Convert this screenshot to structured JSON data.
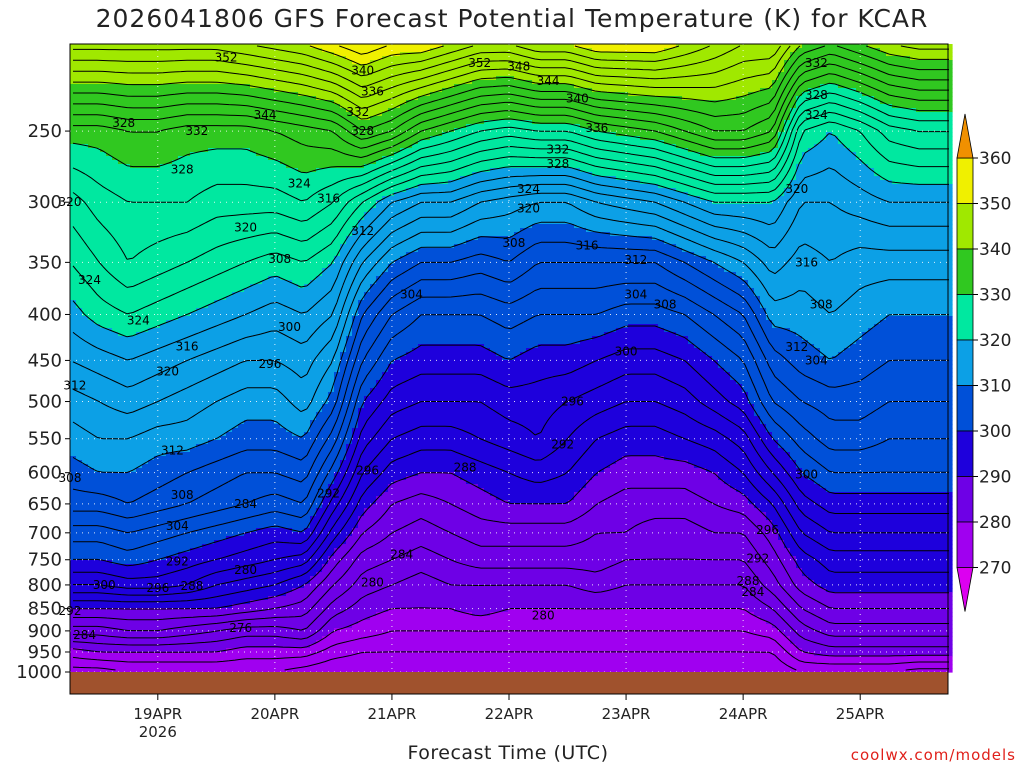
{
  "title": "2026041806 GFS Forecast Potential Temperature (K) for KCAR",
  "xlabel": "Forecast Time (UTC)",
  "credit": "coolwx.com/models",
  "chart_data": {
    "type": "heatmap",
    "title": "2026041806 GFS Forecast Potential Temperature (K) for KCAR",
    "xlabel": "Forecast Time (UTC)",
    "ylabel": "",
    "y_ticks": [
      250,
      300,
      350,
      400,
      450,
      500,
      550,
      600,
      650,
      700,
      750,
      800,
      850,
      900,
      950,
      1000
    ],
    "y_tick_labels": [
      "250",
      "300",
      "350",
      "400",
      "450",
      "500",
      "550",
      "600",
      "650",
      "700",
      "750",
      "800",
      "850",
      "900",
      "950",
      "1000"
    ],
    "ylim": [
      1000,
      200
    ],
    "y_scale": "log",
    "x_ticks": [
      "19APR",
      "20APR",
      "21APR",
      "22APR",
      "23APR",
      "24APR",
      "25APR"
    ],
    "x_tick_labels": [
      "19APR",
      "20APR",
      "21APR",
      "22APR",
      "23APR",
      "24APR",
      "25APR"
    ],
    "x_sublabel": "2026",
    "x_hours": [
      0,
      6,
      12,
      18,
      24,
      30,
      36,
      42,
      48,
      54,
      60,
      66,
      72,
      78,
      84,
      90,
      96,
      102,
      108,
      114,
      120,
      126,
      132,
      138,
      144,
      150,
      156,
      162,
      168,
      174,
      180
    ],
    "colorbar": {
      "levels": [
        270,
        280,
        290,
        300,
        310,
        320,
        330,
        340,
        350,
        360
      ],
      "labels": [
        "270",
        "280",
        "290",
        "300",
        "310",
        "320",
        "330",
        "340",
        "350",
        "360"
      ],
      "colors": [
        "#dc00f0",
        "#a000f0",
        "#6e00e6",
        "#1e00dc",
        "#0050d8",
        "#0ca0e6",
        "#00e8a0",
        "#30c820",
        "#a0e800",
        "#f0f000",
        "#f09000"
      ],
      "extend": "both"
    },
    "pressure_levels": [
      1000,
      950,
      900,
      850,
      800,
      750,
      700,
      650,
      600,
      550,
      500,
      450,
      400,
      350,
      300,
      250,
      200
    ],
    "theta_profiles": [
      [
        275,
        279,
        285,
        290,
        296,
        300,
        303,
        307,
        309,
        311,
        313,
        316,
        319,
        322,
        325,
        331,
        347
      ],
      [
        275,
        280,
        285,
        290,
        296,
        300,
        303,
        307,
        310,
        312,
        314,
        317,
        321,
        324,
        327,
        331,
        347
      ],
      [
        276,
        280,
        286,
        290,
        297,
        301,
        304,
        308,
        310,
        312,
        315,
        318,
        322,
        326,
        328,
        332,
        347
      ],
      [
        276,
        280,
        286,
        290,
        297,
        300,
        303,
        307,
        309,
        311,
        314,
        317,
        321,
        325,
        328,
        332,
        347
      ],
      [
        276,
        280,
        285,
        290,
        296,
        299,
        302,
        306,
        308,
        311,
        313,
        316,
        320,
        324,
        328,
        331,
        347
      ],
      [
        276,
        280,
        284,
        290,
        294,
        298,
        301,
        305,
        307,
        310,
        312,
        315,
        319,
        323,
        327,
        331,
        347
      ],
      [
        276,
        279,
        283,
        289,
        293,
        297,
        300,
        304,
        306,
        309,
        311,
        314,
        318,
        322,
        327,
        331,
        348
      ],
      [
        276,
        279,
        283,
        288,
        292,
        296,
        299,
        303,
        306,
        309,
        311,
        314,
        317,
        321,
        327,
        332,
        349
      ],
      [
        275,
        279,
        284,
        287,
        290,
        295,
        300,
        304,
        307,
        310,
        313,
        315,
        318,
        322,
        328,
        333,
        350
      ],
      [
        274,
        277,
        280,
        283,
        286,
        289,
        293,
        297,
        301,
        305,
        309,
        312,
        316,
        320,
        326,
        334,
        352
      ],
      [
        274,
        276,
        279,
        281,
        283,
        285,
        288,
        291,
        294,
        297,
        300,
        304,
        308,
        314,
        322,
        338,
        354
      ],
      [
        274,
        276,
        278,
        280,
        282,
        284,
        286,
        288,
        291,
        294,
        297,
        300,
        304,
        310,
        318,
        336,
        352
      ],
      [
        274,
        276,
        278,
        280,
        281,
        283,
        285,
        287,
        290,
        293,
        296,
        299,
        302,
        308,
        316,
        332,
        352
      ],
      [
        274,
        276,
        278,
        280,
        282,
        284,
        286,
        288,
        290,
        293,
        296,
        299,
        302,
        308,
        316,
        330,
        350
      ],
      [
        274,
        276,
        278,
        281,
        282,
        285,
        287,
        289,
        291,
        294,
        296,
        299,
        302,
        307,
        314,
        328,
        348
      ],
      [
        274,
        276,
        278,
        280,
        282,
        285,
        287,
        290,
        292,
        295,
        297,
        300,
        303,
        308,
        313,
        327,
        348
      ],
      [
        274,
        276,
        278,
        280,
        282,
        285,
        287,
        290,
        293,
        296,
        297,
        299,
        302,
        306,
        312,
        328,
        350
      ],
      [
        274,
        276,
        278,
        280,
        282,
        285,
        287,
        290,
        292,
        294,
        296,
        299,
        302,
        306,
        312,
        328,
        350
      ],
      [
        274,
        276,
        278,
        280,
        283,
        285,
        286,
        288,
        290,
        292,
        295,
        298,
        302,
        306,
        314,
        330,
        352
      ],
      [
        274,
        276,
        278,
        280,
        282,
        284,
        286,
        287,
        289,
        291,
        294,
        297,
        301,
        306,
        315,
        331,
        352
      ],
      [
        274,
        276,
        278,
        280,
        282,
        284,
        285,
        287,
        289,
        291,
        294,
        297,
        301,
        306,
        316,
        332,
        352
      ],
      [
        274,
        276,
        278,
        280,
        282,
        284,
        285,
        287,
        289,
        292,
        295,
        298,
        302,
        308,
        318,
        334,
        350
      ],
      [
        274,
        276,
        278,
        280,
        282,
        284,
        286,
        288,
        290,
        293,
        297,
        300,
        304,
        310,
        320,
        336,
        348
      ],
      [
        274,
        276,
        278,
        280,
        282,
        284,
        286,
        289,
        292,
        295,
        299,
        302,
        306,
        312,
        320,
        336,
        346
      ],
      [
        274,
        276,
        279,
        282,
        285,
        287,
        289,
        292,
        296,
        300,
        304,
        307,
        311,
        315,
        320,
        334,
        346
      ],
      [
        276,
        280,
        283,
        286,
        289,
        291,
        294,
        297,
        300,
        303,
        306,
        309,
        311,
        313,
        316,
        322,
        340
      ],
      [
        276,
        281,
        285,
        288,
        291,
        293,
        296,
        299,
        302,
        305,
        307,
        310,
        312,
        314,
        316,
        320,
        338
      ],
      [
        276,
        281,
        285,
        288,
        291,
        293,
        296,
        299,
        302,
        305,
        307,
        309,
        311,
        313,
        317,
        322,
        340
      ],
      [
        276,
        281,
        285,
        288,
        291,
        293,
        296,
        299,
        302,
        304,
        306,
        308,
        310,
        313,
        318,
        325,
        342
      ],
      [
        275,
        281,
        285,
        288,
        291,
        293,
        296,
        299,
        302,
        304,
        306,
        308,
        310,
        313,
        318,
        326,
        343
      ],
      [
        275,
        281,
        285,
        288,
        291,
        293,
        296,
        299,
        302,
        304,
        306,
        308,
        310,
        313,
        318,
        326,
        343
      ]
    ],
    "contour_interval": 2,
    "contour_labels": [
      {
        "text": "352",
        "hour": 32,
        "p": 207
      },
      {
        "text": "344",
        "hour": 40,
        "p": 240
      },
      {
        "text": "340",
        "hour": 60,
        "p": 214
      },
      {
        "text": "336",
        "hour": 62,
        "p": 226
      },
      {
        "text": "332",
        "hour": 59,
        "p": 238
      },
      {
        "text": "328",
        "hour": 60,
        "p": 250
      },
      {
        "text": "352",
        "hour": 84,
        "p": 210
      },
      {
        "text": "348",
        "hour": 92,
        "p": 212
      },
      {
        "text": "344",
        "hour": 98,
        "p": 220
      },
      {
        "text": "340",
        "hour": 104,
        "p": 230
      },
      {
        "text": "336",
        "hour": 108,
        "p": 248
      },
      {
        "text": "332",
        "hour": 100,
        "p": 262
      },
      {
        "text": "328",
        "hour": 100,
        "p": 272
      },
      {
        "text": "332",
        "hour": 153,
        "p": 210
      },
      {
        "text": "328",
        "hour": 153,
        "p": 228
      },
      {
        "text": "324",
        "hour": 153,
        "p": 240
      },
      {
        "text": "328",
        "hour": 11,
        "p": 245
      },
      {
        "text": "332",
        "hour": 26,
        "p": 250
      },
      {
        "text": "328",
        "hour": 23,
        "p": 276
      },
      {
        "text": "324",
        "hour": 47,
        "p": 286
      },
      {
        "text": "316",
        "hour": 53,
        "p": 297
      },
      {
        "text": "312",
        "hour": 60,
        "p": 323
      },
      {
        "text": "324",
        "hour": 94,
        "p": 290
      },
      {
        "text": "320",
        "hour": 94,
        "p": 305
      },
      {
        "text": "316",
        "hour": 106,
        "p": 335
      },
      {
        "text": "312",
        "hour": 116,
        "p": 348
      },
      {
        "text": "308",
        "hour": 91,
        "p": 333
      },
      {
        "text": "320",
        "hour": 36,
        "p": 320
      },
      {
        "text": "308",
        "hour": 43,
        "p": 347
      },
      {
        "text": "304",
        "hour": 70,
        "p": 380
      },
      {
        "text": "300",
        "hour": 45,
        "p": 413
      },
      {
        "text": "320",
        "hour": 149,
        "p": 290
      },
      {
        "text": "316",
        "hour": 151,
        "p": 350
      },
      {
        "text": "308",
        "hour": 122,
        "p": 390
      },
      {
        "text": "304",
        "hour": 116,
        "p": 380
      },
      {
        "text": "300",
        "hour": 114,
        "p": 440
      },
      {
        "text": "308",
        "hour": 154,
        "p": 390
      },
      {
        "text": "312",
        "hour": 149,
        "p": 435
      },
      {
        "text": "304",
        "hour": 153,
        "p": 450
      },
      {
        "text": "320",
        "hour": 0,
        "p": 300
      },
      {
        "text": "324",
        "hour": 4,
        "p": 366
      },
      {
        "text": "324",
        "hour": 14,
        "p": 406
      },
      {
        "text": "316",
        "hour": 24,
        "p": 434
      },
      {
        "text": "320",
        "hour": 20,
        "p": 463
      },
      {
        "text": "312",
        "hour": 1,
        "p": 480
      },
      {
        "text": "312",
        "hour": 21,
        "p": 567
      },
      {
        "text": "308",
        "hour": 0,
        "p": 608
      },
      {
        "text": "308",
        "hour": 23,
        "p": 635
      },
      {
        "text": "304",
        "hour": 22,
        "p": 688
      },
      {
        "text": "296",
        "hour": 41,
        "p": 454
      },
      {
        "text": "296",
        "hour": 61,
        "p": 597
      },
      {
        "text": "292",
        "hour": 53,
        "p": 633
      },
      {
        "text": "284",
        "hour": 36,
        "p": 650
      },
      {
        "text": "288",
        "hour": 81,
        "p": 592
      },
      {
        "text": "292",
        "hour": 101,
        "p": 558
      },
      {
        "text": "296",
        "hour": 103,
        "p": 500
      },
      {
        "text": "284",
        "hour": 68,
        "p": 740
      },
      {
        "text": "280",
        "hour": 62,
        "p": 795
      },
      {
        "text": "280",
        "hour": 97,
        "p": 865
      },
      {
        "text": "280",
        "hour": 36,
        "p": 770
      },
      {
        "text": "276",
        "hour": 35,
        "p": 893
      },
      {
        "text": "292",
        "hour": 22,
        "p": 753
      },
      {
        "text": "288",
        "hour": 25,
        "p": 802
      },
      {
        "text": "296",
        "hour": 18,
        "p": 806
      },
      {
        "text": "300",
        "hour": 7,
        "p": 800
      },
      {
        "text": "292",
        "hour": 0,
        "p": 855
      },
      {
        "text": "284",
        "hour": 3,
        "p": 910
      },
      {
        "text": "300",
        "hour": 151,
        "p": 603
      },
      {
        "text": "296",
        "hour": 143,
        "p": 695
      },
      {
        "text": "292",
        "hour": 141,
        "p": 748
      },
      {
        "text": "288",
        "hour": 139,
        "p": 792
      },
      {
        "text": "284",
        "hour": 140,
        "p": 815
      }
    ]
  }
}
